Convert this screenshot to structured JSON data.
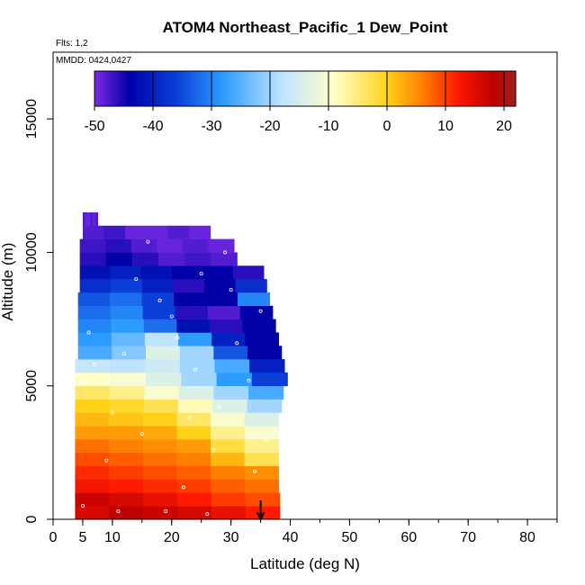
{
  "chart_data": {
    "type": "heatmap",
    "title": "ATOM4 Northeast_Pacific_1 Dew_Point",
    "annotations": {
      "flights": "Flts: 1,2",
      "dates": "MMDD: 0424,0427"
    },
    "xlabel": "Latitude (deg N)",
    "ylabel": "Altitude (m)",
    "xlim": [
      0,
      85
    ],
    "ylim": [
      0,
      17500
    ],
    "x_ticks": [
      "0",
      "5",
      "10",
      "20",
      "30",
      "40",
      "50",
      "60",
      "70",
      "80"
    ],
    "x_tick_values": [
      0,
      5,
      10,
      20,
      30,
      40,
      50,
      60,
      70,
      80
    ],
    "y_ticks": [
      "0",
      "5000",
      "10000",
      "15000"
    ],
    "y_tick_values": [
      0,
      5000,
      10000,
      15000
    ],
    "colorbar": {
      "range": [
        -50,
        22
      ],
      "ticks": [
        "-50",
        "-40",
        "-30",
        "-20",
        "-10",
        "0",
        "10",
        "20"
      ],
      "tick_values": [
        -50,
        -40,
        -30,
        -20,
        -10,
        0,
        10,
        20
      ],
      "colors": [
        "#7b2be6",
        "#0000a8",
        "#0a3fd8",
        "#2d9cff",
        "#bfe4ff",
        "#ffffc8",
        "#ffd21a",
        "#ff8000",
        "#ff1a00",
        "#c00000",
        "#9e2020"
      ],
      "color_stops": [
        -50,
        -44,
        -36,
        -28,
        -18,
        -9,
        0,
        6,
        12,
        18,
        22
      ]
    },
    "layer_step_m": 500,
    "layers": [
      {
        "alt": 0,
        "lat_min": 3.7,
        "lat_max": 38.2,
        "dewpoint": [
          16,
          18,
          17,
          16,
          14,
          12
        ]
      },
      {
        "alt": 500,
        "lat_min": 3.7,
        "lat_max": 38.2,
        "dewpoint": [
          17,
          16,
          14,
          12,
          10,
          9
        ]
      },
      {
        "alt": 1000,
        "lat_min": 3.7,
        "lat_max": 38.0,
        "dewpoint": [
          13,
          12,
          11,
          10,
          8,
          7
        ]
      },
      {
        "alt": 1500,
        "lat_min": 3.7,
        "lat_max": 38.0,
        "dewpoint": [
          11,
          10,
          9,
          8,
          6,
          5
        ]
      },
      {
        "alt": 2000,
        "lat_min": 3.7,
        "lat_max": 38.0,
        "dewpoint": [
          9,
          8,
          7,
          6,
          2,
          -3
        ]
      },
      {
        "alt": 2500,
        "lat_min": 3.7,
        "lat_max": 38.0,
        "dewpoint": [
          7,
          6,
          5,
          4,
          -2,
          -6
        ]
      },
      {
        "alt": 3000,
        "lat_min": 3.7,
        "lat_max": 38.0,
        "dewpoint": [
          4,
          4,
          3,
          0,
          -6,
          -10
        ]
      },
      {
        "alt": 3500,
        "lat_min": 3.7,
        "lat_max": 38.0,
        "dewpoint": [
          2,
          1,
          0,
          -4,
          -10,
          -14
        ]
      },
      {
        "alt": 4000,
        "lat_min": 3.7,
        "lat_max": 38.5,
        "dewpoint": [
          0,
          -1,
          -3,
          -8,
          -14,
          -20
        ]
      },
      {
        "alt": 4500,
        "lat_min": 3.7,
        "lat_max": 38.8,
        "dewpoint": [
          -4,
          -6,
          -10,
          -14,
          -20,
          -26
        ]
      },
      {
        "alt": 5000,
        "lat_min": 3.7,
        "lat_max": 39.5,
        "dewpoint": [
          -9,
          -10,
          -14,
          -20,
          -28,
          -36
        ]
      },
      {
        "alt": 5500,
        "lat_min": 3.7,
        "lat_max": 39.0,
        "dewpoint": [
          -17,
          -18,
          -16,
          -20,
          -26,
          -40
        ]
      },
      {
        "alt": 6000,
        "lat_min": 4.2,
        "lat_max": 38.5,
        "dewpoint": [
          -26,
          -22,
          -14,
          -20,
          -34,
          -44
        ]
      },
      {
        "alt": 6500,
        "lat_min": 4.2,
        "lat_max": 38.0,
        "dewpoint": [
          -28,
          -24,
          -18,
          -28,
          -40,
          -44
        ]
      },
      {
        "alt": 7000,
        "lat_min": 4.2,
        "lat_max": 37.5,
        "dewpoint": [
          -30,
          -28,
          -32,
          -42,
          -46,
          -44
        ]
      },
      {
        "alt": 7500,
        "lat_min": 4.2,
        "lat_max": 37.0,
        "dewpoint": [
          -32,
          -30,
          -36,
          -46,
          -48,
          -44
        ]
      },
      {
        "alt": 8000,
        "lat_min": 4.2,
        "lat_max": 36.5,
        "dewpoint": [
          -34,
          -32,
          -36,
          -44,
          -44,
          -30
        ]
      },
      {
        "alt": 8500,
        "lat_min": 4.5,
        "lat_max": 36.0,
        "dewpoint": [
          -38,
          -36,
          -40,
          -46,
          -44,
          -38
        ]
      },
      {
        "alt": 9000,
        "lat_min": 4.5,
        "lat_max": 35.5,
        "dewpoint": [
          -42,
          -40,
          -42,
          -44,
          -44,
          -46
        ]
      },
      {
        "alt": 9500,
        "lat_min": 4.5,
        "lat_max": 31.0,
        "dewpoint": [
          -46,
          -44,
          -46,
          -48,
          -47,
          -48
        ]
      },
      {
        "alt": 10000,
        "lat_min": 4.5,
        "lat_max": 30.5,
        "dewpoint": [
          -47,
          -46,
          -48,
          -49,
          -48,
          -49
        ]
      },
      {
        "alt": 10500,
        "lat_min": 5.0,
        "lat_max": 26.5,
        "dewpoint": [
          -48,
          -47,
          -49,
          -49,
          -48,
          -49
        ]
      },
      {
        "alt": 11000,
        "lat_min": 5.0,
        "lat_max": 7.5,
        "dewpoint": [
          -48,
          -49,
          -49,
          -48,
          -49,
          -48
        ]
      }
    ],
    "sample_points": [
      [
        5,
        500
      ],
      [
        9,
        2200
      ],
      [
        15,
        3200
      ],
      [
        22,
        1200
      ],
      [
        28,
        4200
      ],
      [
        33,
        5200
      ],
      [
        12,
        6200
      ],
      [
        20,
        7600
      ],
      [
        25,
        9200
      ],
      [
        30,
        8600
      ],
      [
        16,
        10400
      ],
      [
        8,
        11200
      ],
      [
        36,
        3000
      ],
      [
        24,
        5600
      ],
      [
        10,
        4000
      ],
      [
        31,
        6600
      ],
      [
        18,
        8200
      ],
      [
        27,
        2600
      ],
      [
        6,
        7000
      ],
      [
        34,
        1800
      ],
      [
        14,
        9000
      ],
      [
        21,
        6800
      ],
      [
        29,
        10000
      ],
      [
        11,
        300
      ],
      [
        19,
        300
      ],
      [
        26,
        200
      ],
      [
        35,
        7800
      ],
      [
        7,
        5800
      ],
      [
        23,
        3800
      ],
      [
        32,
        9600
      ]
    ],
    "marker": {
      "lat": 35,
      "direction": "down"
    }
  }
}
